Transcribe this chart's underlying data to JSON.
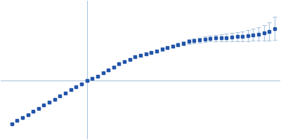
{
  "title": "",
  "background_color": "#ffffff",
  "axis_color": "#aac4e0",
  "data_color": "#2255aa",
  "marker_size": 2.5,
  "line_width": 0.8,
  "cap_size": 2,
  "figsize": [
    4.0,
    2.0
  ],
  "dpi": 100,
  "hline_y": 0.0,
  "vline_x": 0.0,
  "xlim": [
    -0.32,
    0.72
  ],
  "ylim": [
    -0.38,
    0.52
  ],
  "x": [
    -0.28,
    -0.26,
    -0.24,
    -0.22,
    -0.2,
    -0.18,
    -0.16,
    -0.14,
    -0.12,
    -0.1,
    -0.08,
    -0.06,
    -0.04,
    -0.02,
    0.0,
    0.02,
    0.04,
    0.06,
    0.08,
    0.1,
    0.12,
    0.14,
    0.16,
    0.18,
    0.2,
    0.22,
    0.24,
    0.26,
    0.28,
    0.3,
    0.32,
    0.34,
    0.36,
    0.38,
    0.4,
    0.42,
    0.44,
    0.46,
    0.48,
    0.5,
    0.52,
    0.54,
    0.56,
    0.58,
    0.6,
    0.62,
    0.64,
    0.66,
    0.68,
    0.7
  ],
  "y": [
    -0.28,
    -0.26,
    -0.24,
    -0.22,
    -0.2,
    -0.18,
    -0.16,
    -0.14,
    -0.12,
    -0.1,
    -0.08,
    -0.06,
    -0.04,
    -0.02,
    0.0,
    0.015,
    0.03,
    0.05,
    0.07,
    0.09,
    0.11,
    0.125,
    0.14,
    0.155,
    0.165,
    0.175,
    0.185,
    0.195,
    0.205,
    0.215,
    0.225,
    0.235,
    0.245,
    0.255,
    0.26,
    0.265,
    0.27,
    0.275,
    0.278,
    0.28,
    0.282,
    0.285,
    0.288,
    0.29,
    0.295,
    0.3,
    0.305,
    0.31,
    0.32,
    0.34
  ],
  "yerr": [
    0.003,
    0.003,
    0.003,
    0.003,
    0.003,
    0.003,
    0.003,
    0.003,
    0.003,
    0.003,
    0.003,
    0.003,
    0.003,
    0.003,
    0.004,
    0.004,
    0.004,
    0.005,
    0.005,
    0.005,
    0.006,
    0.006,
    0.006,
    0.007,
    0.007,
    0.008,
    0.008,
    0.009,
    0.01,
    0.01,
    0.011,
    0.012,
    0.013,
    0.014,
    0.015,
    0.016,
    0.018,
    0.02,
    0.022,
    0.024,
    0.026,
    0.028,
    0.03,
    0.033,
    0.036,
    0.04,
    0.045,
    0.05,
    0.06,
    0.075
  ]
}
